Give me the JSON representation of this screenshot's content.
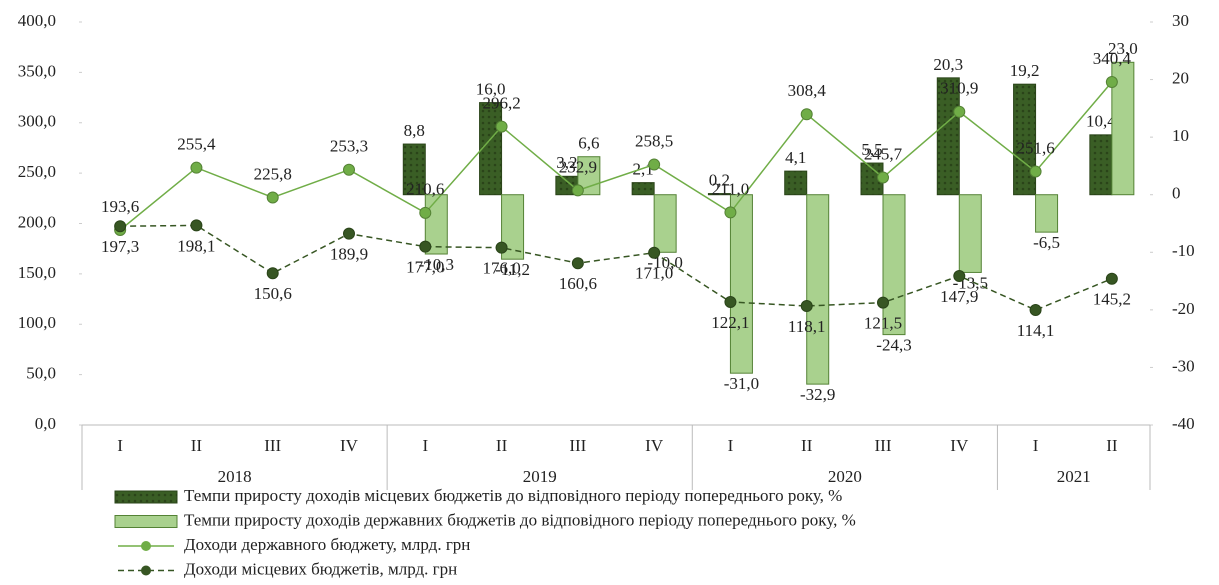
{
  "chart_data": {
    "type": "bar-line",
    "categories": [
      "I",
      "II",
      "III",
      "IV",
      "I",
      "II",
      "III",
      "IV",
      "I",
      "II",
      "III",
      "IV",
      "I",
      "II"
    ],
    "groups": [
      {
        "name": "2018",
        "span": 4
      },
      {
        "name": "2019",
        "span": 4
      },
      {
        "name": "2020",
        "span": 4
      },
      {
        "name": "2021",
        "span": 2
      }
    ],
    "ylim": [
      0,
      400
    ],
    "yticks": [
      {
        "value": 0,
        "label": "0,0"
      },
      {
        "value": 50,
        "label": "50,0"
      },
      {
        "value": 100,
        "label": "100,0"
      },
      {
        "value": 150,
        "label": "150,0"
      },
      {
        "value": 200,
        "label": "200,0"
      },
      {
        "value": 250,
        "label": "250,0"
      },
      {
        "value": 300,
        "label": "300,0"
      },
      {
        "value": 350,
        "label": "350,0"
      },
      {
        "value": 400,
        "label": "400,0"
      }
    ],
    "y2lim": [
      -40,
      30
    ],
    "y2ticks": [
      -40,
      -30,
      -20,
      -10,
      0,
      10,
      20,
      30
    ],
    "series": [
      {
        "name": "Темпи приросту доходів місцевих  бюджетів до відповідного періоду попереднього року, %",
        "kind": "bar",
        "axis": "y2",
        "color": "#3a5e25",
        "values": [
          null,
          null,
          null,
          null,
          8.8,
          16.0,
          3.2,
          2.1,
          0.2,
          4.1,
          5.5,
          20.3,
          19.2,
          10.4
        ],
        "value_labels": [
          null,
          null,
          null,
          null,
          "8,8",
          "16,0",
          "3,2",
          "2,1",
          "0,2",
          "4,1",
          "5,5",
          "20,3",
          "19,2",
          "10,4"
        ]
      },
      {
        "name": "Темпи приросту доходів державних бюджетів до відповідного періоду попереднього року, %",
        "kind": "bar",
        "axis": "y2",
        "color": "#a9d18e",
        "values": [
          null,
          null,
          null,
          null,
          -10.3,
          -11.2,
          6.6,
          -10.0,
          -31.0,
          -32.9,
          -24.3,
          -13.5,
          -6.5,
          23.0
        ],
        "value_labels": [
          null,
          null,
          null,
          null,
          "-10,3",
          "-11,2",
          "6,6",
          "-10,0",
          "-31,0",
          "-32,9",
          "-24,3",
          "-13,5",
          "-6,5",
          "23,0"
        ]
      },
      {
        "name": "Доходи державного бюджету, млрд. грн",
        "kind": "line",
        "color": "#70ad47",
        "values": [
          193.6,
          255.4,
          225.8,
          253.3,
          210.6,
          296.2,
          232.9,
          258.5,
          211.0,
          308.4,
          245.7,
          310.9,
          251.6,
          340.4
        ],
        "value_labels": [
          "193,6",
          "255,4",
          "225,8",
          "253,3",
          "210,6",
          "296,2",
          "232,9",
          "258,5",
          "211,0",
          "308,4",
          "245,7",
          "310,9",
          "251,6",
          "340,4"
        ]
      },
      {
        "name": "Доходи місцевих  бюджетів, млрд. грн",
        "kind": "dashed-line",
        "color": "#375623",
        "values": [
          197.3,
          198.1,
          150.6,
          189.9,
          177.0,
          176.0,
          160.6,
          171.0,
          122.1,
          118.1,
          121.5,
          147.9,
          114.1,
          145.2
        ],
        "value_labels": [
          "197,3",
          "198,1",
          "150,6",
          "189,9",
          "177,0",
          "176,0",
          "160,6",
          "171,0",
          "122,1",
          "118,1",
          "121,5",
          "147,9",
          "114,1",
          "145,2"
        ]
      }
    ],
    "grid": false
  }
}
